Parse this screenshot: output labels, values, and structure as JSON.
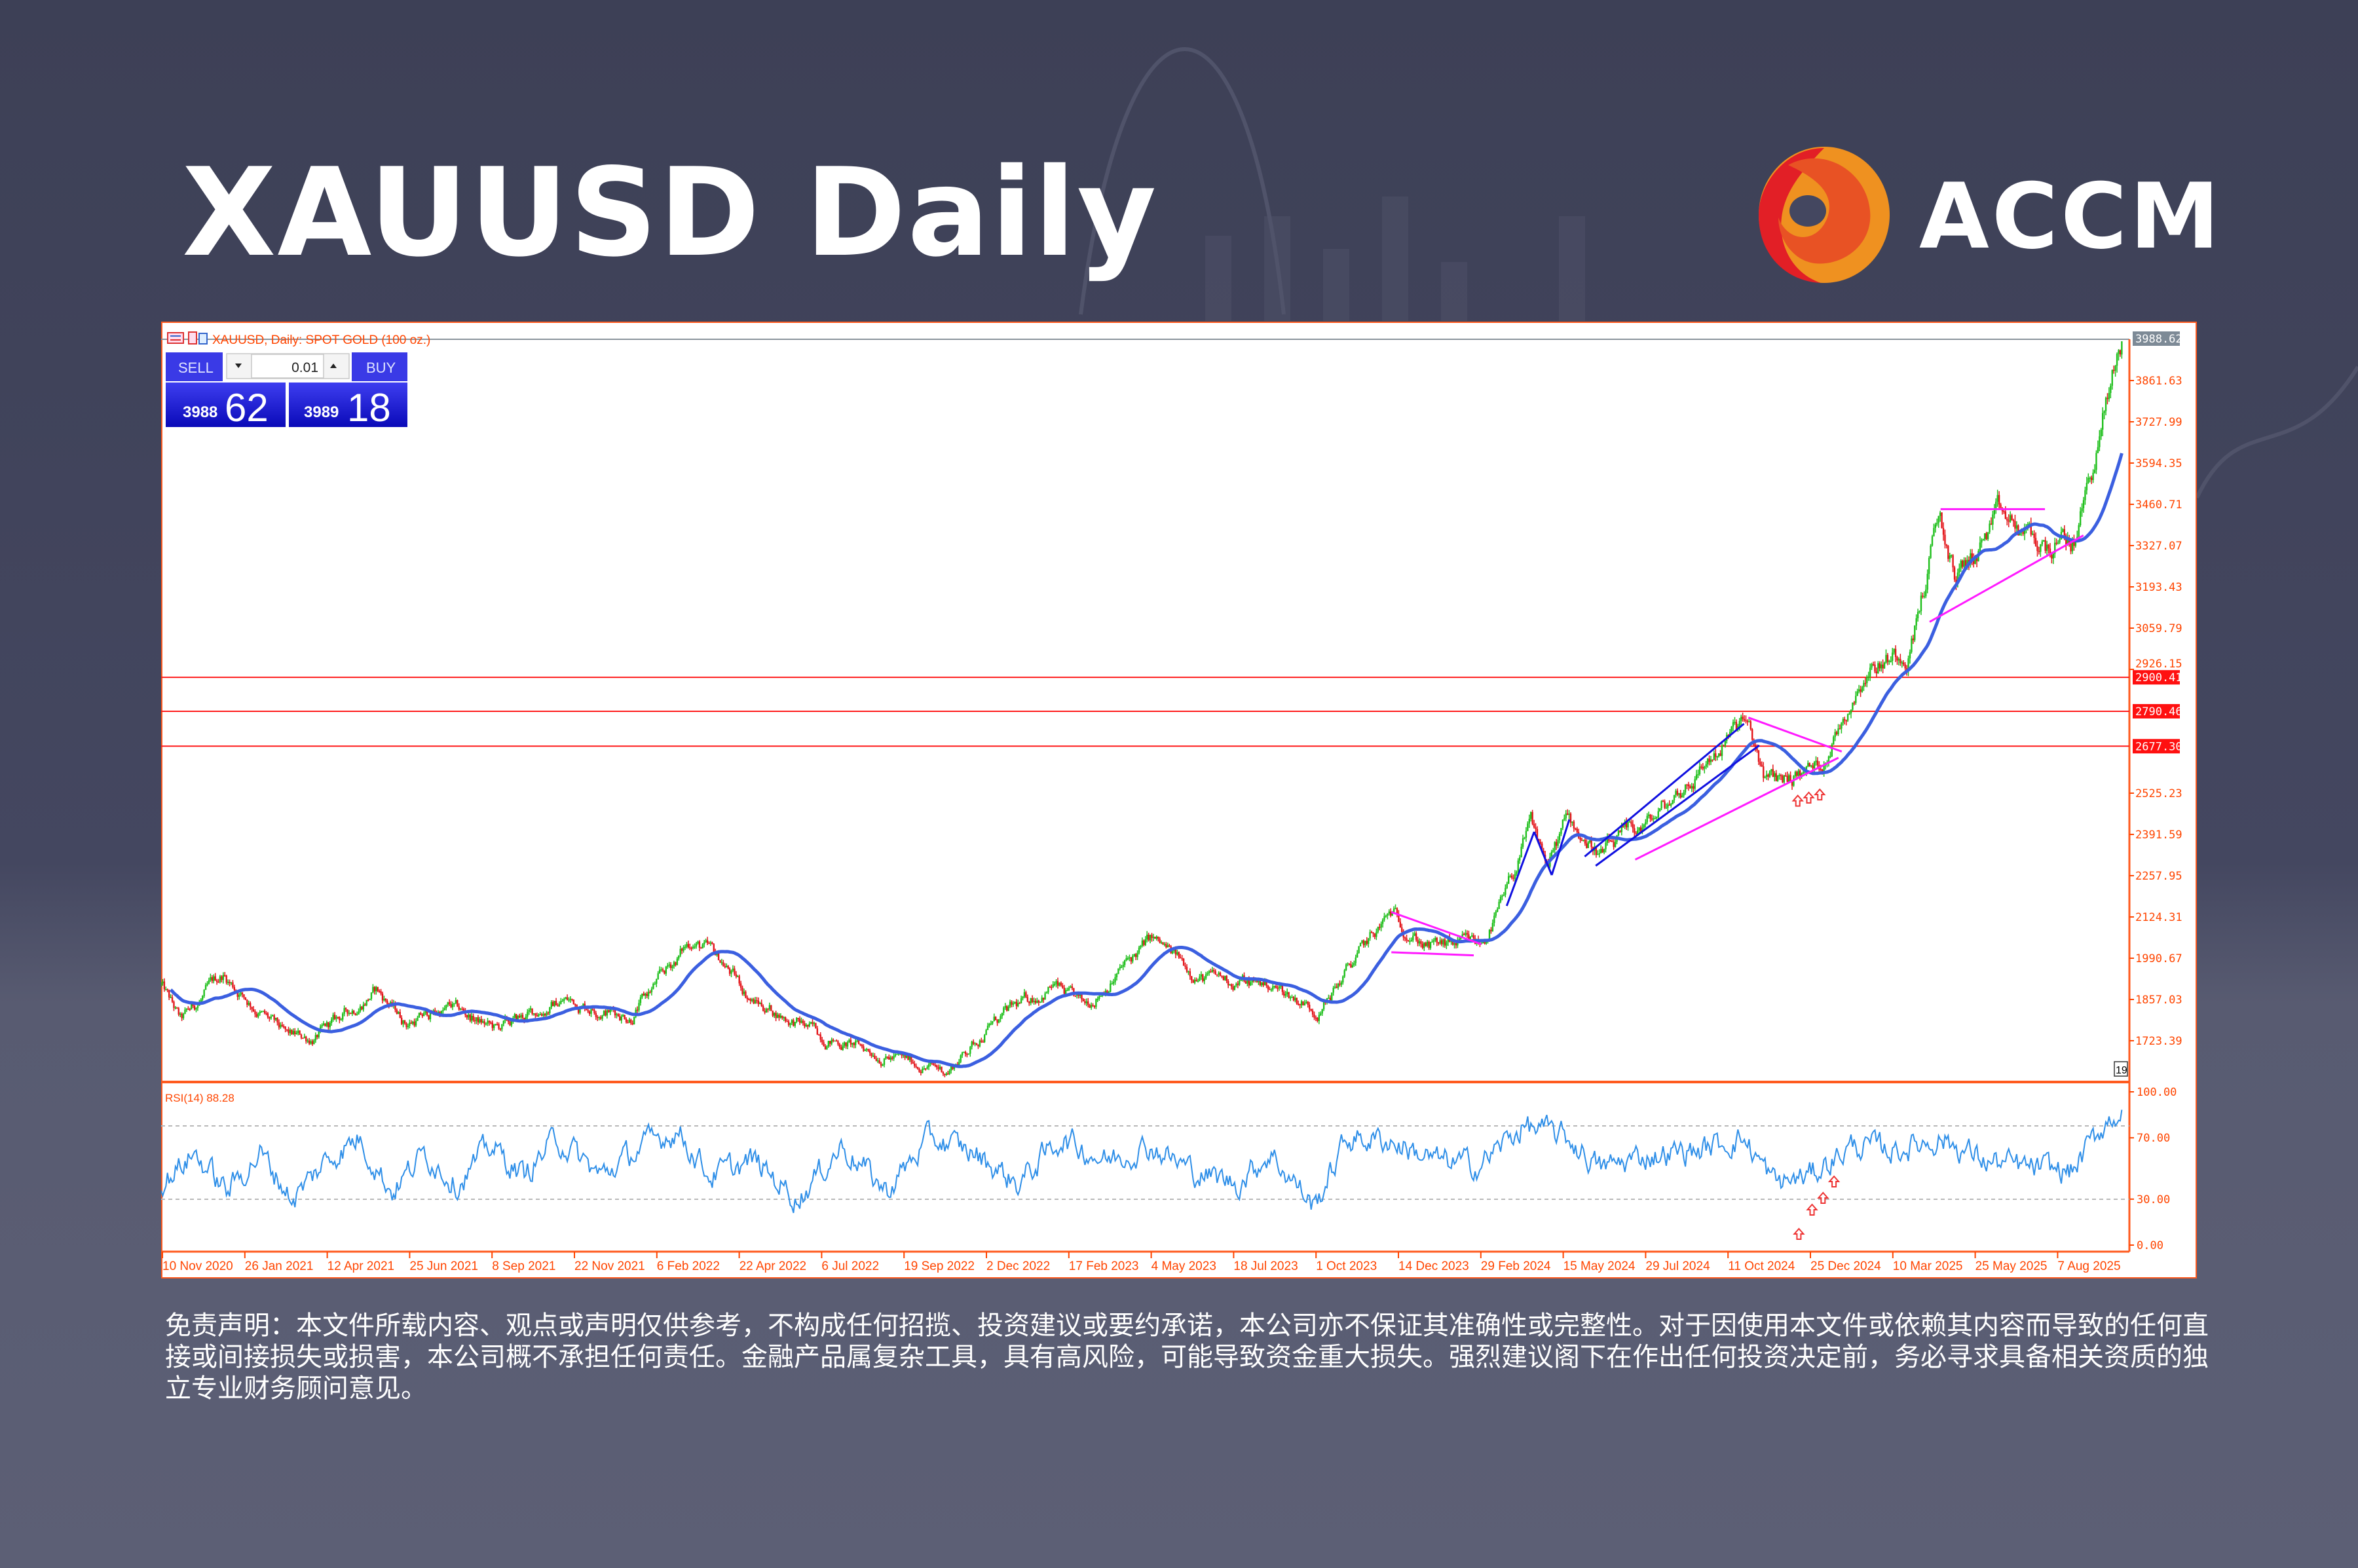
{
  "header": {
    "title": "XAUUSD Daily",
    "brand": "ACCM"
  },
  "colors": {
    "accent": "#ff4500",
    "bull": "#1fbf1c",
    "bear": "#e3151a",
    "ma": "#3b5fe0",
    "rsi": "#2f8fe8",
    "level": "#ff1a1a",
    "pattern": "#ff1aff",
    "channel": "#1010e0",
    "trade_panel": "#2020d8"
  },
  "chart": {
    "title": "XAUUSD, Daily:  SPOT GOLD (100 oz.)",
    "trade_panel": {
      "sell_label": "SELL",
      "buy_label": "BUY",
      "lot": "0.01",
      "sell_big": "3988",
      "sell_small": "62",
      "buy_big": "3989",
      "buy_small": "18"
    },
    "current_price": "3988.62",
    "price_ticks": [
      "3861.63",
      "3727.99",
      "3594.35",
      "3460.71",
      "3327.07",
      "3193.43",
      "3059.79",
      "2926.15",
      "2525.23",
      "2391.59",
      "2257.95",
      "2124.31",
      "1990.67",
      "1857.03",
      "1723.39"
    ],
    "levels": [
      "2900.41",
      "2790.46",
      "2677.30"
    ],
    "corner_label": "19",
    "rsi_label": "RSI(14) 88.28",
    "rsi_ticks": [
      "100.00",
      "70.00",
      "30.00",
      "0.00"
    ],
    "date_ticks": [
      "10 Nov 2020",
      "26 Jan 2021",
      "12 Apr 2021",
      "25 Jun 2021",
      "8 Sep 2021",
      "22 Nov 2021",
      "6 Feb 2022",
      "22 Apr 2022",
      "6 Jul 2022",
      "19 Sep 2022",
      "2 Dec 2022",
      "17 Feb 2023",
      "4 May 2023",
      "18 Jul 2023",
      "1 Oct 2023",
      "14 Dec 2023",
      "29 Feb 2024",
      "15 May 2024",
      "29 Jul 2024",
      "11 Oct 2024",
      "25 Dec 2024",
      "10 Mar 2025",
      "25 May 2025",
      "7 Aug 2025"
    ]
  },
  "chart_data": {
    "type": "candlestick",
    "title": "XAUUSD, Daily:  SPOT GOLD (100 oz.)",
    "x_start": "10 Nov 2020",
    "x_unit": "days since 10 Nov 2020",
    "ylim": [
      1640,
      4020
    ],
    "price_path": [
      [
        0,
        1904
      ],
      [
        18,
        1782
      ],
      [
        56,
        1938
      ],
      [
        114,
        1733
      ],
      [
        141,
        1733
      ],
      [
        196,
        1889
      ],
      [
        223,
        1782
      ],
      [
        264,
        1830
      ],
      [
        305,
        1758
      ],
      [
        367,
        1855
      ],
      [
        428,
        1806
      ],
      [
        483,
        2050
      ],
      [
        511,
        1977
      ],
      [
        538,
        1855
      ],
      [
        606,
        1733
      ],
      [
        675,
        1660
      ],
      [
        716,
        1625
      ],
      [
        757,
        1782
      ],
      [
        812,
        1904
      ],
      [
        839,
        1830
      ],
      [
        901,
        2050
      ],
      [
        948,
        1928
      ],
      [
        1010,
        1904
      ],
      [
        1055,
        1821
      ],
      [
        1085,
        1977
      ],
      [
        1120,
        2133
      ],
      [
        1154,
        2026
      ],
      [
        1202,
        2036
      ],
      [
        1222,
        2172
      ],
      [
        1247,
        2416
      ],
      [
        1263,
        2293
      ],
      [
        1280,
        2440
      ],
      [
        1311,
        2328
      ],
      [
        1359,
        2440
      ],
      [
        1441,
        2756
      ],
      [
        1462,
        2561
      ],
      [
        1510,
        2610
      ],
      [
        1551,
        2926
      ],
      [
        1592,
        3000
      ],
      [
        1619,
        3414
      ],
      [
        1633,
        3219
      ],
      [
        1674,
        3414
      ],
      [
        1715,
        3316
      ],
      [
        1742,
        3340
      ],
      [
        1763,
        3657
      ],
      [
        1785,
        3988.62
      ]
    ],
    "moving_average": "blue smoothed MA",
    "horizontal_levels": [
      2900.41,
      2790.46,
      2677.3
    ],
    "trendlines": [
      {
        "color": "pattern",
        "from": [
          1120,
          2140
        ],
        "to": [
          1202,
          2036
        ]
      },
      {
        "color": "pattern",
        "from": [
          1120,
          2010
        ],
        "to": [
          1195,
          2000
        ]
      },
      {
        "color": "channel",
        "from": [
          1225,
          2160
        ],
        "to": [
          1250,
          2400
        ]
      },
      {
        "color": "channel",
        "from": [
          1250,
          2400
        ],
        "to": [
          1266,
          2260
        ]
      },
      {
        "color": "channel",
        "from": [
          1266,
          2260
        ],
        "to": [
          1282,
          2440
        ]
      },
      {
        "color": "channel",
        "from": [
          1296,
          2320
        ],
        "to": [
          1441,
          2750
        ]
      },
      {
        "color": "channel",
        "from": [
          1306,
          2290
        ],
        "to": [
          1455,
          2680
        ]
      },
      {
        "color": "pattern",
        "from": [
          1342,
          2310
        ],
        "to": [
          1527,
          2640
        ]
      },
      {
        "color": "pattern",
        "from": [
          1445,
          2770
        ],
        "to": [
          1530,
          2660
        ]
      },
      {
        "color": "pattern",
        "from": [
          1620,
          3445
        ],
        "to": [
          1715,
          3445
        ]
      },
      {
        "color": "pattern",
        "from": [
          1610,
          3080
        ],
        "to": [
          1750,
          3360
        ]
      }
    ],
    "rsi": {
      "period": 14,
      "current": 88.28,
      "levels": [
        70,
        30
      ],
      "ylim": [
        0,
        100
      ],
      "path": [
        [
          0,
          40
        ],
        [
          30,
          60
        ],
        [
          60,
          35
        ],
        [
          90,
          60
        ],
        [
          120,
          30
        ],
        [
          150,
          55
        ],
        [
          180,
          70
        ],
        [
          210,
          35
        ],
        [
          240,
          60
        ],
        [
          270,
          40
        ],
        [
          300,
          65
        ],
        [
          330,
          45
        ],
        [
          360,
          70
        ],
        [
          400,
          45
        ],
        [
          440,
          65
        ],
        [
          470,
          75
        ],
        [
          500,
          45
        ],
        [
          540,
          55
        ],
        [
          580,
          30
        ],
        [
          620,
          65
        ],
        [
          660,
          35
        ],
        [
          700,
          70
        ],
        [
          740,
          60
        ],
        [
          780,
          40
        ],
        [
          820,
          70
        ],
        [
          860,
          55
        ],
        [
          900,
          65
        ],
        [
          940,
          48
        ],
        [
          980,
          40
        ],
        [
          1010,
          60
        ],
        [
          1050,
          25
        ],
        [
          1080,
          70
        ],
        [
          1120,
          68
        ],
        [
          1160,
          55
        ],
        [
          1200,
          52
        ],
        [
          1240,
          78
        ],
        [
          1280,
          70
        ],
        [
          1310,
          50
        ],
        [
          1350,
          58
        ],
        [
          1400,
          62
        ],
        [
          1440,
          70
        ],
        [
          1470,
          40
        ],
        [
          1500,
          45
        ],
        [
          1540,
          65
        ],
        [
          1580,
          62
        ],
        [
          1620,
          70
        ],
        [
          1660,
          55
        ],
        [
          1700,
          50
        ],
        [
          1740,
          48
        ],
        [
          1770,
          80
        ],
        [
          1785,
          88.28
        ]
      ]
    }
  },
  "disclaimer": "免责声明：本文件所载内容、观点或声明仅供参考，不构成任何招揽、投资建议或要约承诺，本公司亦不保证其准确性或完整性。对于因使用本文件或依赖其内容而导致的任何直接或间接损失或损害，本公司概不承担任何责任。金融产品属复杂工具，具有高风险，可能导致资金重大损失。强烈建议阁下在作出任何投资决定前，务必寻求具备相关资质的独立专业财务顾问意见。"
}
